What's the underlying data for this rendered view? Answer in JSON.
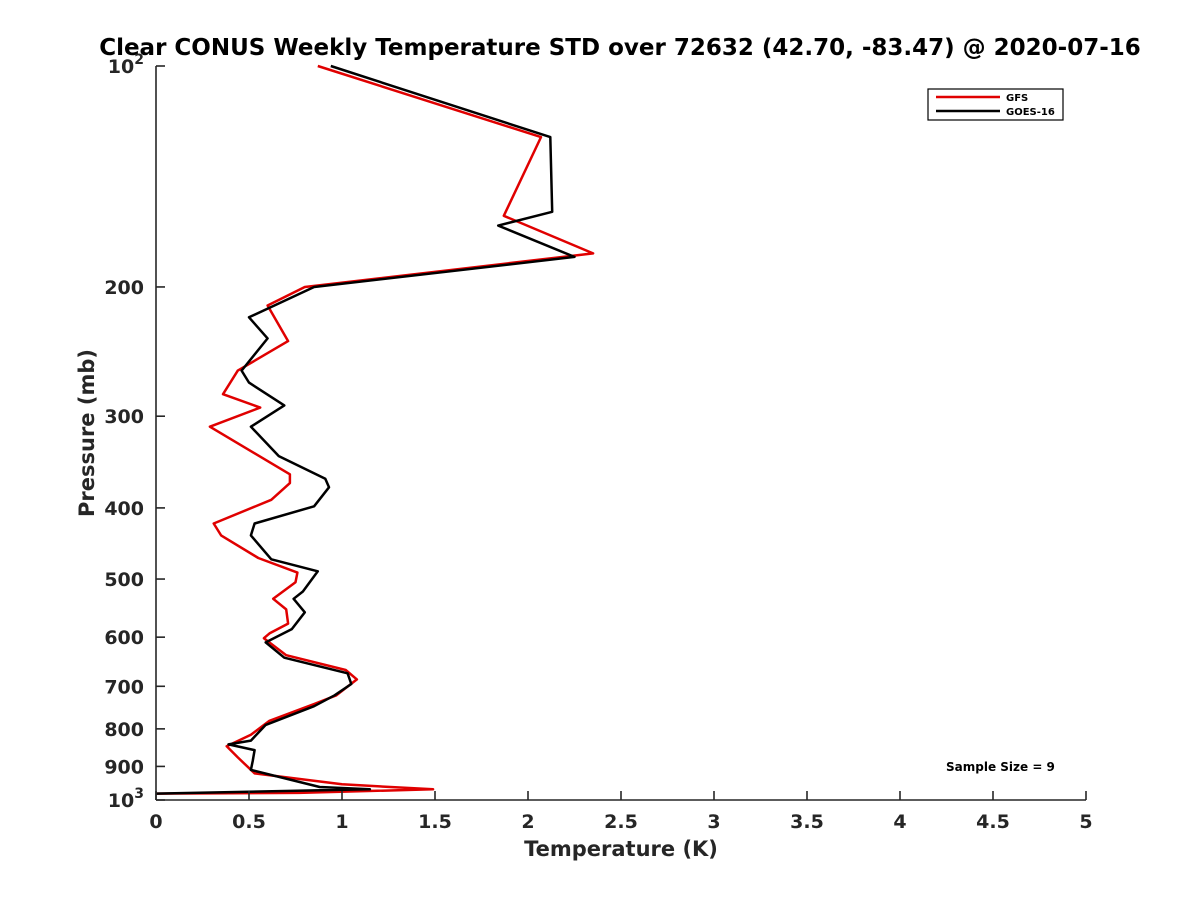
{
  "chart_data": {
    "type": "line",
    "title": "Clear CONUS Weekly Temperature STD over 72632 (42.70, -83.47) @ 2020-07-16",
    "xlabel": "Temperature (K)",
    "ylabel": "Pressure (mb)",
    "xlim": [
      0,
      5
    ],
    "ylim": [
      100,
      1000
    ],
    "y_scale": "log",
    "y_reversed": true,
    "x_ticks": [
      "0",
      "0.5",
      "1",
      "1.5",
      "2",
      "2.5",
      "3",
      "3.5",
      "4",
      "4.5",
      "5"
    ],
    "y_ticks": [
      {
        "value": 100,
        "base": "10",
        "exp": "2"
      },
      {
        "value": 200,
        "label": "200"
      },
      {
        "value": 300,
        "label": "300"
      },
      {
        "value": 400,
        "label": "400"
      },
      {
        "value": 500,
        "label": "500"
      },
      {
        "value": 600,
        "label": "600"
      },
      {
        "value": 700,
        "label": "700"
      },
      {
        "value": 800,
        "label": "800"
      },
      {
        "value": 900,
        "label": "900"
      },
      {
        "value": 1000,
        "base": "10",
        "exp": "3"
      }
    ],
    "grid": false,
    "legend_position": "top-right",
    "annotation": "Sample Size = 9",
    "series": [
      {
        "name": "GFS",
        "color": "#e00000",
        "points": [
          [
            0.87,
            100
          ],
          [
            2.07,
            125
          ],
          [
            1.87,
            160
          ],
          [
            2.35,
            180
          ],
          [
            0.8,
            200
          ],
          [
            0.6,
            212
          ],
          [
            0.71,
            237
          ],
          [
            0.44,
            260
          ],
          [
            0.36,
            280
          ],
          [
            0.56,
            292
          ],
          [
            0.29,
            310
          ],
          [
            0.72,
            360
          ],
          [
            0.72,
            370
          ],
          [
            0.62,
            390
          ],
          [
            0.31,
            420
          ],
          [
            0.35,
            436
          ],
          [
            0.55,
            468
          ],
          [
            0.76,
            490
          ],
          [
            0.75,
            505
          ],
          [
            0.63,
            532
          ],
          [
            0.7,
            550
          ],
          [
            0.71,
            575
          ],
          [
            0.61,
            593
          ],
          [
            0.58,
            602
          ],
          [
            0.7,
            635
          ],
          [
            1.02,
            665
          ],
          [
            1.08,
            685
          ],
          [
            0.97,
            720
          ],
          [
            0.85,
            740
          ],
          [
            0.61,
            780
          ],
          [
            0.51,
            815
          ],
          [
            0.38,
            845
          ],
          [
            0.44,
            875
          ],
          [
            0.53,
            920
          ],
          [
            1.0,
            952
          ],
          [
            1.49,
            967
          ],
          [
            0.77,
            978
          ],
          [
            0.0,
            980
          ]
        ]
      },
      {
        "name": "GOES-16",
        "color": "#000000",
        "points": [
          [
            0.94,
            100
          ],
          [
            2.12,
            125
          ],
          [
            2.13,
            158
          ],
          [
            1.84,
            165
          ],
          [
            2.25,
            182
          ],
          [
            0.85,
            200
          ],
          [
            0.5,
            220
          ],
          [
            0.6,
            235
          ],
          [
            0.46,
            260
          ],
          [
            0.5,
            270
          ],
          [
            0.69,
            290
          ],
          [
            0.51,
            310
          ],
          [
            0.66,
            340
          ],
          [
            0.91,
            365
          ],
          [
            0.93,
            375
          ],
          [
            0.85,
            398
          ],
          [
            0.53,
            420
          ],
          [
            0.51,
            436
          ],
          [
            0.62,
            470
          ],
          [
            0.87,
            488
          ],
          [
            0.79,
            520
          ],
          [
            0.74,
            532
          ],
          [
            0.8,
            555
          ],
          [
            0.73,
            585
          ],
          [
            0.59,
            610
          ],
          [
            0.69,
            640
          ],
          [
            1.03,
            672
          ],
          [
            1.05,
            695
          ],
          [
            0.96,
            720
          ],
          [
            0.85,
            745
          ],
          [
            0.59,
            790
          ],
          [
            0.51,
            830
          ],
          [
            0.39,
            840
          ],
          [
            0.53,
            855
          ],
          [
            0.52,
            885
          ],
          [
            0.51,
            910
          ],
          [
            0.88,
            960
          ],
          [
            1.15,
            967
          ],
          [
            0.0,
            980
          ]
        ]
      }
    ]
  }
}
